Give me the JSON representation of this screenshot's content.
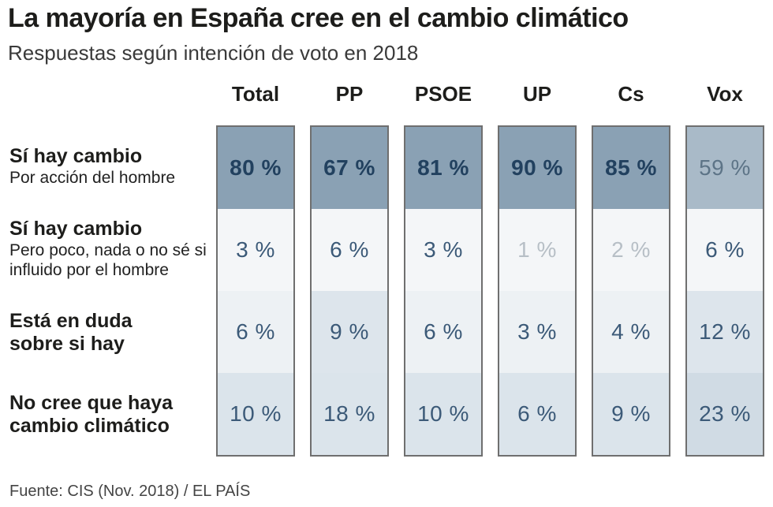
{
  "header": {
    "title": "La mayoría en España cree en el cambio climático",
    "subtitle": "Respuestas según intención de voto en 2018"
  },
  "footer": {
    "source": "Fuente: CIS (Nov. 2018) / EL PAÍS"
  },
  "chart_data": {
    "type": "table",
    "title": "La mayoría en España cree en el cambio climático",
    "subtitle": "Respuestas según intención de voto en 2018",
    "columns": [
      "Total",
      "PP",
      "PSOE",
      "UP",
      "Cs",
      "Vox"
    ],
    "rows": [
      {
        "label": "Sí hay cambio",
        "sublabel": "Por acción del hombre"
      },
      {
        "label": "Sí hay cambio",
        "sublabel": "Pero poco, nada o no sé si influido por el hombre"
      },
      {
        "label": "Está en duda sobre si hay",
        "sublabel": ""
      },
      {
        "label": "No cree que haya cambio climático",
        "sublabel": ""
      }
    ],
    "values": [
      [
        80,
        67,
        81,
        90,
        85,
        59
      ],
      [
        3,
        6,
        3,
        1,
        2,
        6
      ],
      [
        6,
        9,
        6,
        3,
        4,
        12
      ],
      [
        10,
        18,
        10,
        6,
        9,
        23
      ]
    ],
    "display": [
      [
        "80 %",
        "67 %",
        "81 %",
        "90 %",
        "85 %",
        "59 %"
      ],
      [
        "3 %",
        "6 %",
        "3 %",
        "1 %",
        "2 %",
        "6 %"
      ],
      [
        "6 %",
        "9 %",
        "6 %",
        "3 %",
        "4 %",
        "12 %"
      ],
      [
        "10 %",
        "18 %",
        "10 %",
        "6 %",
        "9 %",
        "23 %"
      ]
    ],
    "unit": "%"
  }
}
